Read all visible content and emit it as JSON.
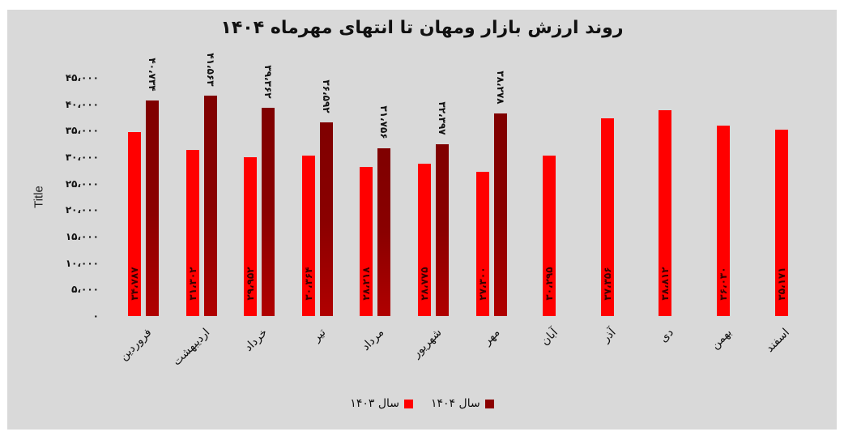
{
  "title": "روند ارزش بازار ومهان تا انتهای مهرماه ۱۴۰۴",
  "y_axis": {
    "label": "Title",
    "ticks": [
      {
        "value": 0,
        "label": "۰"
      },
      {
        "value": 5000,
        "label": "۵،۰۰۰"
      },
      {
        "value": 10000,
        "label": "۱۰،۰۰۰"
      },
      {
        "value": 15000,
        "label": "۱۵،۰۰۰"
      },
      {
        "value": 20000,
        "label": "۲۰،۰۰۰"
      },
      {
        "value": 25000,
        "label": "۲۵،۰۰۰"
      },
      {
        "value": 30000,
        "label": "۳۰،۰۰۰"
      },
      {
        "value": 35000,
        "label": "۳۵،۰۰۰"
      },
      {
        "value": 40000,
        "label": "۴۰،۰۰۰"
      },
      {
        "value": 45000,
        "label": "۴۵،۰۰۰"
      }
    ]
  },
  "legend": [
    {
      "label": "سال ۱۴۰۴",
      "color": "#8b0000"
    },
    {
      "label": "سال ۱۴۰۳",
      "color": "#ff0000"
    }
  ],
  "colors": {
    "y1403": "#ff0000",
    "y1404": "#8b0000",
    "background": "#d9d9d9"
  },
  "chart_data": {
    "type": "bar",
    "title": "روند ارزش بازار ومهان تا انتهای مهرماه ۱۴۰۴",
    "xlabel": "",
    "ylabel": "Title",
    "ylim": [
      0,
      45000
    ],
    "grid": false,
    "legend_position": "bottom",
    "categories": [
      "فروردین",
      "اردیبهشت",
      "خرداد",
      "تیر",
      "مرداد",
      "شهریور",
      "مهر",
      "آبان",
      "آذر",
      "دی",
      "بهمن",
      "اسفند"
    ],
    "series": [
      {
        "name": "سال ۱۴۰۳",
        "color": "#ff0000",
        "values": [
          34787,
          31302,
          29952,
          30364,
          28218,
          28775,
          27300,
          30295,
          37356,
          38812,
          36030,
          35171
        ],
        "labels": [
          "۳۴،۷۸۷",
          "۳۱،۳۰۲",
          "۲۹،۹۵۲",
          "۳۰،۳۶۴",
          "۲۸،۲۱۸",
          "۲۸،۷۷۵",
          "۲۷،۳۰۰",
          "۳۰،۲۹۵",
          "۳۷،۳۵۶",
          "۳۸،۸۱۲",
          "۳۶،۰۳۰",
          "۳۵،۱۷۱"
        ]
      },
      {
        "name": "سال ۱۴۰۴",
        "color": "#8b0000",
        "values": [
          40734,
          41563,
          39362,
          36592,
          31756,
          32397,
          38278,
          null,
          null,
          null,
          null,
          null
        ],
        "labels": [
          "۴۰،۷۳۴",
          "۴۱،۵۶۳",
          "۳۹،۳۶۲",
          "۳۶،۵۹۲",
          "۳۱،۷۵۶",
          "۳۲،۳۹۷",
          "۳۸،۲۷۸",
          null,
          null,
          null,
          null,
          null
        ]
      }
    ]
  }
}
